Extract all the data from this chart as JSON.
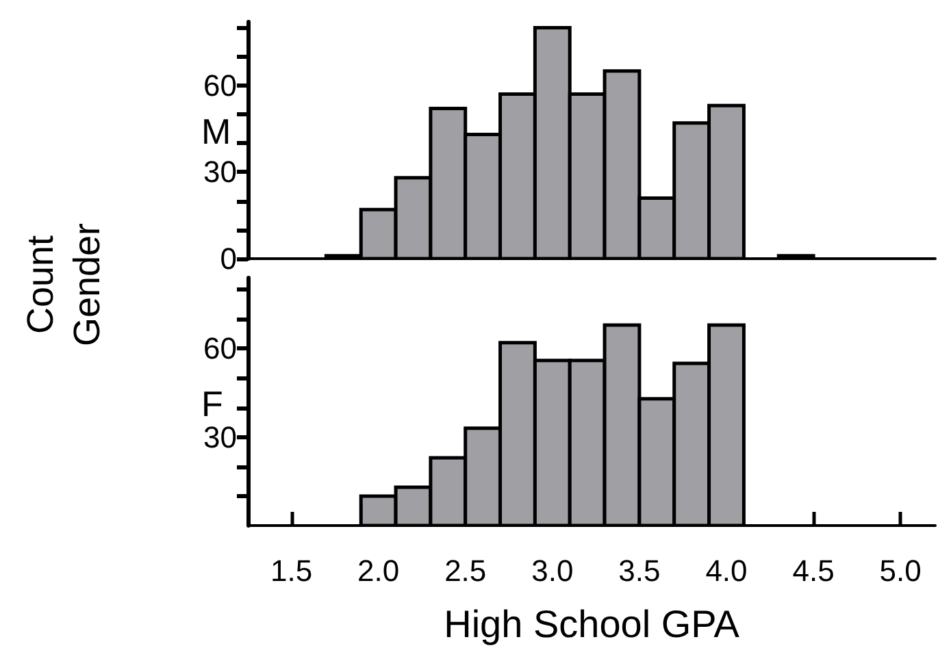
{
  "chart_data": [
    {
      "type": "histogram",
      "title": "M",
      "ylabel": "Count",
      "annotations": [
        "Gender"
      ],
      "color": "#a0a0a4",
      "bins": [
        1.7,
        1.9,
        2.1,
        2.3,
        2.5,
        2.7,
        2.9,
        3.1,
        3.3,
        3.5,
        3.7,
        3.9,
        4.1,
        4.3,
        4.5
      ],
      "values": [
        1,
        17,
        28,
        52,
        43,
        57,
        80,
        57,
        65,
        21,
        47,
        53,
        0,
        1
      ],
      "xlim": [
        1.25,
        5.2
      ],
      "ylim": [
        0,
        82
      ],
      "yticks": [
        0,
        {
          "value": 10,
          "label": null
        },
        {
          "value": 20,
          "label": null
        },
        30,
        {
          "value": 40,
          "label": null
        },
        {
          "value": 50,
          "label": null
        },
        60,
        {
          "value": 70,
          "label": null
        },
        {
          "value": 80,
          "label": null
        }
      ],
      "tick_labels": "y"
    },
    {
      "type": "histogram",
      "title": "F",
      "xlabel": "High School GPA",
      "color": "#a0a0a4",
      "bins": [
        1.9,
        2.1,
        2.3,
        2.5,
        2.7,
        2.9,
        3.1,
        3.3,
        3.5,
        3.7,
        3.9,
        4.1
      ],
      "values": [
        10,
        13,
        23,
        33,
        62,
        56,
        56,
        68,
        43,
        55,
        68
      ],
      "xlim": [
        1.25,
        5.2
      ],
      "xticks": [
        {
          "value": 1.5,
          "label": "1.5"
        },
        {
          "value": 2,
          "label": "2.0"
        },
        {
          "value": 2.5,
          "label": "2.5"
        },
        {
          "value": 3,
          "label": "3.0"
        },
        {
          "value": 3.5,
          "label": "3.5"
        },
        {
          "value": 4,
          "label": "4.0"
        },
        {
          "value": 4.5,
          "label": "4.5"
        },
        {
          "value": 5,
          "label": "5.0"
        }
      ],
      "ylim": [
        0,
        84
      ],
      "yticks": [
        {
          "value": 10,
          "label": null
        },
        {
          "value": 20,
          "label": null
        },
        30,
        {
          "value": 40,
          "label": null
        },
        {
          "value": 50,
          "label": null
        },
        60,
        {
          "value": 70,
          "label": null
        },
        {
          "value": 80,
          "label": null
        }
      ]
    }
  ]
}
